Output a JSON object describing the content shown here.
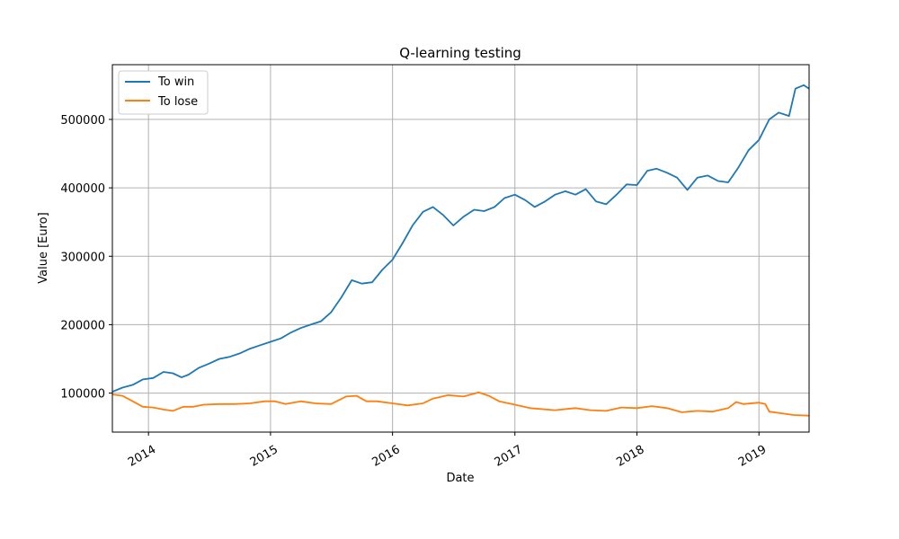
{
  "chart_data": {
    "type": "line",
    "title": "Q-learning testing",
    "xlabel": "Date",
    "ylabel": "Value [Euro]",
    "x_axis_type": "date",
    "xlim": [
      "2013-09-15",
      "2019-05-31"
    ],
    "ylim": [
      43000,
      580000
    ],
    "x_ticks": [
      {
        "date": "2014-01-01",
        "label": "2014"
      },
      {
        "date": "2015-01-01",
        "label": "2015"
      },
      {
        "date": "2016-01-01",
        "label": "2016"
      },
      {
        "date": "2017-01-01",
        "label": "2017"
      },
      {
        "date": "2018-01-01",
        "label": "2018"
      },
      {
        "date": "2019-01-01",
        "label": "2019"
      }
    ],
    "y_ticks": [
      100000,
      200000,
      300000,
      400000,
      500000
    ],
    "y_tick_labels": [
      "100000",
      "200000",
      "300000",
      "400000",
      "500000"
    ],
    "grid": true,
    "legend_position": "top-left",
    "series": [
      {
        "name": "To win",
        "color": "#1f77b4",
        "points": [
          [
            "2013-09-15",
            102000
          ],
          [
            "2013-10-15",
            108000
          ],
          [
            "2013-11-15",
            112000
          ],
          [
            "2013-12-15",
            120000
          ],
          [
            "2014-01-15",
            122000
          ],
          [
            "2014-02-15",
            131000
          ],
          [
            "2014-03-15",
            129000
          ],
          [
            "2014-04-10",
            123000
          ],
          [
            "2014-05-01",
            127000
          ],
          [
            "2014-06-01",
            137000
          ],
          [
            "2014-07-01",
            143000
          ],
          [
            "2014-08-01",
            150000
          ],
          [
            "2014-09-01",
            153000
          ],
          [
            "2014-10-01",
            158000
          ],
          [
            "2014-11-01",
            165000
          ],
          [
            "2014-12-01",
            170000
          ],
          [
            "2015-01-01",
            175000
          ],
          [
            "2015-02-01",
            180000
          ],
          [
            "2015-03-01",
            188000
          ],
          [
            "2015-04-01",
            195000
          ],
          [
            "2015-05-01",
            200000
          ],
          [
            "2015-06-01",
            205000
          ],
          [
            "2015-07-01",
            218000
          ],
          [
            "2015-08-01",
            240000
          ],
          [
            "2015-09-01",
            265000
          ],
          [
            "2015-10-01",
            260000
          ],
          [
            "2015-11-01",
            262000
          ],
          [
            "2015-12-01",
            280000
          ],
          [
            "2016-01-01",
            295000
          ],
          [
            "2016-02-01",
            320000
          ],
          [
            "2016-03-01",
            345000
          ],
          [
            "2016-04-01",
            365000
          ],
          [
            "2016-05-01",
            372000
          ],
          [
            "2016-06-01",
            360000
          ],
          [
            "2016-07-01",
            345000
          ],
          [
            "2016-08-01",
            358000
          ],
          [
            "2016-09-01",
            368000
          ],
          [
            "2016-10-01",
            366000
          ],
          [
            "2016-11-01",
            372000
          ],
          [
            "2016-12-01",
            385000
          ],
          [
            "2017-01-01",
            390000
          ],
          [
            "2017-02-01",
            382000
          ],
          [
            "2017-03-01",
            372000
          ],
          [
            "2017-04-01",
            380000
          ],
          [
            "2017-05-01",
            390000
          ],
          [
            "2017-06-01",
            395000
          ],
          [
            "2017-07-01",
            390000
          ],
          [
            "2017-08-01",
            398000
          ],
          [
            "2017-09-01",
            380000
          ],
          [
            "2017-10-01",
            376000
          ],
          [
            "2017-11-01",
            390000
          ],
          [
            "2017-12-01",
            405000
          ],
          [
            "2018-01-01",
            404000
          ],
          [
            "2018-02-01",
            425000
          ],
          [
            "2018-03-01",
            428000
          ],
          [
            "2018-04-01",
            422000
          ],
          [
            "2018-05-01",
            415000
          ],
          [
            "2018-06-01",
            397000
          ],
          [
            "2018-07-01",
            415000
          ],
          [
            "2018-08-01",
            418000
          ],
          [
            "2018-09-01",
            410000
          ],
          [
            "2018-10-01",
            408000
          ],
          [
            "2018-11-01",
            430000
          ],
          [
            "2018-12-01",
            455000
          ],
          [
            "2019-01-01",
            470000
          ],
          [
            "2019-02-01",
            500000
          ],
          [
            "2019-03-01",
            510000
          ],
          [
            "2019-04-01",
            505000
          ],
          [
            "2019-04-20",
            545000
          ],
          [
            "2019-05-15",
            550000
          ],
          [
            "2019-05-31",
            545000
          ]
        ]
      },
      {
        "name": "To lose",
        "color": "#ff7f0e",
        "points": [
          [
            "2013-09-15",
            98000
          ],
          [
            "2013-10-15",
            96000
          ],
          [
            "2013-11-15",
            88000
          ],
          [
            "2013-12-15",
            80000
          ],
          [
            "2014-01-15",
            79000
          ],
          [
            "2014-02-15",
            76000
          ],
          [
            "2014-03-15",
            74000
          ],
          [
            "2014-04-15",
            80000
          ],
          [
            "2014-05-15",
            80000
          ],
          [
            "2014-06-15",
            83000
          ],
          [
            "2014-08-01",
            84000
          ],
          [
            "2014-09-15",
            84000
          ],
          [
            "2014-11-01",
            85000
          ],
          [
            "2014-12-15",
            88000
          ],
          [
            "2015-01-15",
            88000
          ],
          [
            "2015-02-15",
            84000
          ],
          [
            "2015-04-01",
            88000
          ],
          [
            "2015-05-15",
            85000
          ],
          [
            "2015-07-01",
            84000
          ],
          [
            "2015-08-15",
            95000
          ],
          [
            "2015-09-15",
            96000
          ],
          [
            "2015-10-15",
            88000
          ],
          [
            "2015-11-15",
            88000
          ],
          [
            "2016-01-01",
            85000
          ],
          [
            "2016-02-15",
            82000
          ],
          [
            "2016-04-01",
            85000
          ],
          [
            "2016-05-01",
            92000
          ],
          [
            "2016-06-15",
            97000
          ],
          [
            "2016-08-01",
            95000
          ],
          [
            "2016-09-15",
            101000
          ],
          [
            "2016-10-15",
            96000
          ],
          [
            "2016-11-15",
            88000
          ],
          [
            "2017-01-01",
            83000
          ],
          [
            "2017-02-15",
            78000
          ],
          [
            "2017-05-01",
            75000
          ],
          [
            "2017-07-01",
            78000
          ],
          [
            "2017-08-15",
            75000
          ],
          [
            "2017-10-01",
            74000
          ],
          [
            "2017-11-15",
            79000
          ],
          [
            "2018-01-01",
            78000
          ],
          [
            "2018-02-15",
            81000
          ],
          [
            "2018-04-01",
            78000
          ],
          [
            "2018-05-15",
            72000
          ],
          [
            "2018-07-01",
            74000
          ],
          [
            "2018-08-15",
            73000
          ],
          [
            "2018-10-01",
            78000
          ],
          [
            "2018-10-25",
            87000
          ],
          [
            "2018-11-15",
            84000
          ],
          [
            "2019-01-01",
            86000
          ],
          [
            "2019-01-20",
            84000
          ],
          [
            "2019-02-01",
            73000
          ],
          [
            "2019-03-15",
            70000
          ],
          [
            "2019-04-15",
            68000
          ],
          [
            "2019-05-31",
            67000
          ]
        ]
      }
    ]
  }
}
